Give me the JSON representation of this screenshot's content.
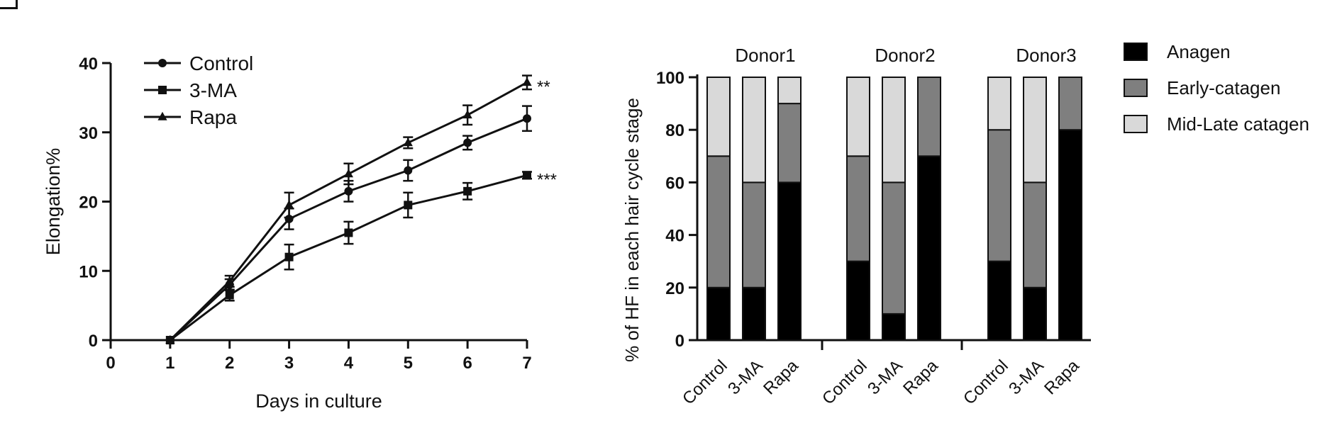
{
  "chart_data": [
    {
      "type": "line",
      "x": [
        1,
        2,
        3,
        4,
        5,
        6,
        7
      ],
      "xlabel": "Days in culture",
      "ylabel": "Elongation%",
      "xlim": [
        0,
        7
      ],
      "ylim": [
        0,
        40
      ],
      "xticks": [
        0,
        1,
        2,
        3,
        4,
        5,
        6,
        7
      ],
      "yticks": [
        0,
        10,
        20,
        30,
        40
      ],
      "grid": false,
      "legend": "top-left",
      "series": [
        {
          "name": "Control",
          "marker": "circle",
          "values": [
            0,
            8.0,
            17.5,
            21.5,
            24.5,
            28.5,
            32.0
          ],
          "errors": [
            0,
            0.8,
            1.5,
            1.5,
            1.5,
            1.0,
            1.8
          ]
        },
        {
          "name": "3-MA",
          "marker": "square",
          "values": [
            0,
            6.5,
            12.0,
            15.5,
            19.5,
            21.5,
            23.8
          ],
          "errors": [
            0,
            0.8,
            1.8,
            1.6,
            1.8,
            1.2,
            0.5
          ]
        },
        {
          "name": "Rapa",
          "marker": "triangle",
          "values": [
            0,
            8.5,
            19.5,
            24.0,
            28.5,
            32.5,
            37.2
          ],
          "errors": [
            0,
            0.8,
            1.8,
            1.5,
            0.8,
            1.4,
            1.0
          ]
        }
      ],
      "annotations": [
        {
          "text": "**",
          "series": "Rapa",
          "x": 7
        },
        {
          "text": "***",
          "series": "3-MA",
          "x": 7
        }
      ]
    },
    {
      "type": "bar",
      "stacked": true,
      "ylabel": "% of HF in each hair cycle stage",
      "ylim": [
        0,
        100
      ],
      "yticks": [
        0,
        20,
        40,
        60,
        80,
        100
      ],
      "legend": "right",
      "groups": [
        "Donor1",
        "Donor2",
        "Donor3"
      ],
      "categories": [
        "Control",
        "3-MA",
        "Rapa"
      ],
      "series": [
        {
          "name": "Anagen",
          "color": "#000000",
          "values": [
            [
              20,
              20,
              60
            ],
            [
              30,
              10,
              70
            ],
            [
              30,
              20,
              80
            ]
          ]
        },
        {
          "name": "Early-catagen",
          "color": "#7f7f7f",
          "values": [
            [
              50,
              40,
              30
            ],
            [
              40,
              50,
              30
            ],
            [
              50,
              40,
              20
            ]
          ]
        },
        {
          "name": "Mid-Late catagen",
          "color": "#d9d9d9",
          "values": [
            [
              30,
              40,
              10
            ],
            [
              30,
              40,
              0
            ],
            [
              20,
              40,
              0
            ]
          ]
        }
      ]
    }
  ]
}
